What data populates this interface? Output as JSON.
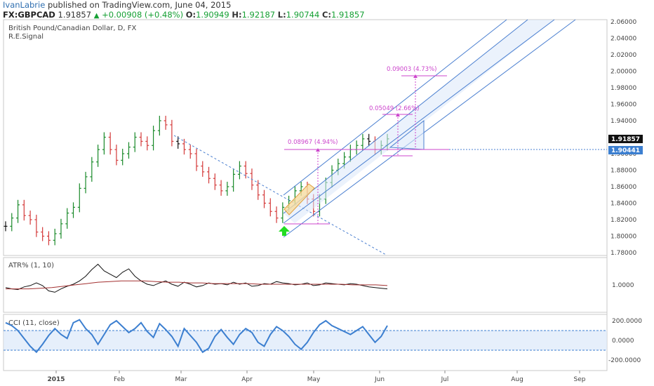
{
  "header": {
    "author": "IvanLabrie",
    "published": "published on TradingView.com, June 04, 2015",
    "symbol": "FX:GBPCAD",
    "last": "1.91857",
    "arrow": "▲",
    "change": "+0.00908 (+0.48%)",
    "o_label": "O:",
    "o_value": "1.90949",
    "h_label": "H:",
    "h_value": "1.92187",
    "l_label": "L:",
    "l_value": "1.90744",
    "c_label": "C:",
    "c_value": "1.91857"
  },
  "main_pane": {
    "title": "British Pound/Canadian Dollar, D, FX",
    "indicator": "R.E.Signal",
    "price_ticks": [
      "2.06000",
      "2.04000",
      "2.02000",
      "2.00000",
      "1.98000",
      "1.96000",
      "1.94000",
      "1.92000",
      "1.90000",
      "1.88000",
      "1.86000",
      "1.84000",
      "1.82000",
      "1.80000",
      "1.78000"
    ],
    "last_price_label": "1.91857",
    "hline_label": "1.90441",
    "measure_labels": [
      "0.08967 (4.94%)",
      "0.05049 (2.66%)",
      "0.09003 (4.73%)"
    ]
  },
  "atr_pane": {
    "title": "ATR% (1, 10)",
    "ticks": [
      "1.0000"
    ]
  },
  "cci_pane": {
    "title": "CCI (11, close)",
    "ticks": [
      "200.0000",
      "0.0000",
      "-200.0000"
    ]
  },
  "x_axis": {
    "labels": [
      "2015",
      "Feb",
      "Mar",
      "Apr",
      "May",
      "Jun",
      "Jul",
      "Aug",
      "Sep"
    ]
  },
  "colors": {
    "up_bar": "#1a8a2a",
    "down_bar": "#d43a3a",
    "neutral_bar": "#111111",
    "channel": "#4a7fd0",
    "measure": "#cc44cc",
    "atr_ma": "#a33030",
    "cci": "#3c7fd0"
  },
  "chart_data": {
    "type": "line",
    "series": [
      {
        "values": [
          1.812,
          1.822,
          1.838,
          1.825,
          1.82,
          1.805,
          1.8,
          1.795,
          1.803,
          1.815,
          1.828,
          1.835,
          1.858,
          1.872,
          1.89,
          1.905,
          1.92,
          1.905,
          1.892,
          1.9,
          1.908,
          1.92,
          1.915,
          1.91,
          1.928,
          1.94,
          1.935,
          1.915,
          1.912,
          1.905,
          1.9,
          1.885,
          1.878,
          1.87,
          1.862,
          1.855,
          1.86,
          1.875,
          1.885,
          1.876,
          1.862,
          1.85,
          1.84,
          1.83,
          1.822,
          1.835,
          1.843,
          1.855,
          1.86,
          1.845,
          1.83,
          1.845,
          1.865,
          1.88,
          1.888,
          1.896,
          1.905,
          1.91,
          1.918,
          1.915,
          1.905,
          1.91,
          1.918
        ]
      }
    ],
    "ylim": [
      1.775,
      2.065
    ],
    "atr": [
      0.95,
      0.93,
      0.92,
      0.96,
      0.98,
      1.02,
      0.98,
      0.9,
      0.88,
      0.93,
      0.97,
      1.0,
      1.05,
      1.12,
      1.22,
      1.3,
      1.2,
      1.15,
      1.1,
      1.18,
      1.23,
      1.12,
      1.05,
      1.0,
      0.98,
      1.02,
      1.05,
      1.0,
      0.97,
      1.03,
      1.0,
      0.96,
      0.98,
      1.02,
      1.0,
      1.01,
      0.99,
      1.03,
      1.0,
      1.02,
      0.97,
      0.98,
      1.01,
      1.0,
      1.04,
      1.02,
      1.01,
      0.99,
      1.0,
      1.02,
      0.98,
      0.99,
      1.02,
      1.01,
      1.0,
      0.99,
      1.01,
      1.0,
      0.98,
      0.96,
      0.95,
      0.94,
      0.93
    ],
    "atr_ma": [
      0.93,
      0.93,
      0.93,
      0.94,
      0.95,
      0.97,
      0.99,
      1.01,
      1.03,
      1.04,
      1.05,
      1.05,
      1.05,
      1.04,
      1.03,
      1.03,
      1.02,
      1.02,
      1.01,
      1.01,
      1.01,
      1.01,
      1.0,
      1.0,
      1.0,
      1.0,
      1.0,
      1.0,
      1.0,
      1.0,
      0.99,
      0.99,
      0.99,
      0.98
    ],
    "cci": [
      180,
      150,
      100,
      20,
      -60,
      -120,
      -40,
      50,
      120,
      60,
      20,
      180,
      210,
      120,
      60,
      -40,
      60,
      160,
      200,
      140,
      80,
      120,
      180,
      90,
      30,
      170,
      110,
      40,
      -60,
      120,
      50,
      -20,
      -120,
      -80,
      40,
      110,
      30,
      -40,
      60,
      120,
      80,
      -20,
      -60,
      60,
      140,
      100,
      40,
      -40,
      -90,
      -20,
      80,
      160,
      200,
      150,
      120,
      90,
      60,
      100,
      140,
      60,
      -20,
      40,
      150
    ]
  }
}
